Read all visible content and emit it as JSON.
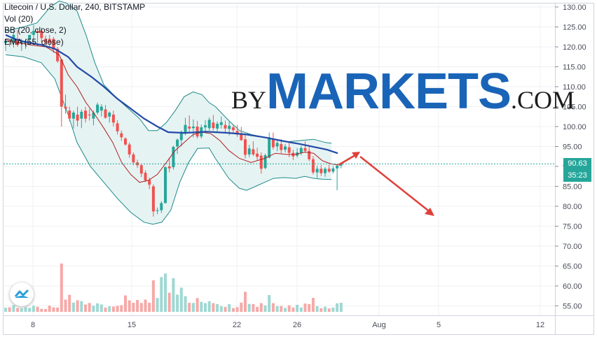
{
  "legend": {
    "title": "Litecoin / U.S. Dollar, 240, BITSTAMP",
    "vol": "Vol (20)",
    "bb": "BB (20, close, 2)",
    "ema": "EMA (55, close)"
  },
  "brand": {
    "by": "BY",
    "markets": "MARKETS",
    "com": ".COM"
  },
  "price_tag": {
    "value": "90.63",
    "countdown": "35:23",
    "color": "#26a69a"
  },
  "colors": {
    "up": "#26a69a",
    "down": "#ef5350",
    "ema": "#2349a8",
    "basis": "#b02020",
    "band": "#1e8a8a",
    "band_fill": "#e3f2f2",
    "arrow": "#e0403a",
    "hline": "#26a69a"
  },
  "icon": "tradingview-logo-icon",
  "chart_data": {
    "type": "candlestick",
    "title": "Litecoin / U.S. Dollar, 240, BITSTAMP",
    "yaxis": {
      "ticks": [
        "130.00",
        "125.00",
        "120.00",
        "115.00",
        "110.00",
        "105.00",
        "100.00",
        "95.00",
        "90.00",
        "85.00",
        "80.00",
        "75.00",
        "70.00",
        "65.00",
        "60.00",
        "55.00"
      ],
      "range": [
        53,
        131
      ]
    },
    "xaxis": {
      "ticks": [
        "8",
        "15",
        "22",
        "26",
        "Aug",
        "5",
        "12"
      ]
    },
    "current_price": 90.63,
    "ema55": [
      [
        0,
        123
      ],
      [
        10,
        122
      ],
      [
        22,
        121.2
      ],
      [
        40,
        120.5
      ],
      [
        55,
        119.5
      ],
      [
        70,
        117.5
      ],
      [
        80,
        115
      ],
      [
        96,
        112.5
      ],
      [
        110,
        110
      ],
      [
        125,
        107
      ],
      [
        140,
        104.5
      ],
      [
        155,
        102
      ],
      [
        170,
        100
      ],
      [
        182,
        98.6
      ],
      [
        200,
        98.4
      ],
      [
        225,
        98.7
      ],
      [
        250,
        98.4
      ],
      [
        270,
        98
      ],
      [
        290,
        97.3
      ],
      [
        310,
        96.4
      ],
      [
        330,
        95.6
      ],
      [
        345,
        94.9
      ],
      [
        360,
        94.2
      ],
      [
        372,
        93.3
      ]
    ],
    "bb_basis": [
      [
        0,
        121.8
      ],
      [
        15,
        121
      ],
      [
        30,
        120.4
      ],
      [
        45,
        120
      ],
      [
        60,
        118
      ],
      [
        70,
        113
      ],
      [
        80,
        110
      ],
      [
        90,
        106
      ],
      [
        100,
        103
      ],
      [
        110,
        99.6
      ],
      [
        120,
        96
      ],
      [
        130,
        91
      ],
      [
        140,
        88
      ],
      [
        150,
        86
      ],
      [
        160,
        86.5
      ],
      [
        170,
        88
      ],
      [
        180,
        91
      ],
      [
        190,
        94
      ],
      [
        200,
        96
      ],
      [
        210,
        98
      ],
      [
        220,
        98.6
      ],
      [
        230,
        98.2
      ],
      [
        240,
        96.5
      ],
      [
        250,
        94
      ],
      [
        262,
        92
      ],
      [
        275,
        91
      ],
      [
        290,
        92
      ],
      [
        302,
        93.3
      ],
      [
        315,
        93
      ],
      [
        325,
        93
      ],
      [
        335,
        93.6
      ],
      [
        345,
        93.3
      ],
      [
        355,
        91.4
      ],
      [
        365,
        90.6
      ],
      [
        372,
        90.4
      ]
    ],
    "bb_upper": [
      [
        0,
        124
      ],
      [
        20,
        125
      ],
      [
        35,
        126
      ],
      [
        50,
        130
      ],
      [
        60,
        131.5
      ],
      [
        68,
        131
      ],
      [
        80,
        129
      ],
      [
        90,
        123
      ],
      [
        100,
        116
      ],
      [
        110,
        110.5
      ],
      [
        125,
        107
      ],
      [
        140,
        104
      ],
      [
        150,
        102
      ],
      [
        160,
        99
      ],
      [
        170,
        99
      ],
      [
        180,
        101
      ],
      [
        190,
        104
      ],
      [
        200,
        107.5
      ],
      [
        210,
        108.7
      ],
      [
        220,
        108
      ],
      [
        228,
        106
      ],
      [
        235,
        105
      ],
      [
        250,
        101.5
      ],
      [
        262,
        99
      ],
      [
        275,
        98
      ],
      [
        290,
        97.3
      ],
      [
        300,
        96.8
      ],
      [
        315,
        96.2
      ],
      [
        330,
        96.5
      ],
      [
        345,
        96.8
      ],
      [
        358,
        96
      ],
      [
        365,
        95.8
      ]
    ],
    "bb_lower": [
      [
        0,
        118
      ],
      [
        20,
        117.5
      ],
      [
        40,
        116
      ],
      [
        55,
        112
      ],
      [
        70,
        103
      ],
      [
        80,
        96
      ],
      [
        95,
        90
      ],
      [
        110,
        86
      ],
      [
        125,
        82
      ],
      [
        140,
        78.5
      ],
      [
        155,
        76
      ],
      [
        165,
        75.5
      ],
      [
        175,
        76
      ],
      [
        185,
        79
      ],
      [
        195,
        86
      ],
      [
        205,
        91
      ],
      [
        215,
        94.5
      ],
      [
        228,
        94.6
      ],
      [
        235,
        92
      ],
      [
        250,
        87
      ],
      [
        262,
        84.5
      ],
      [
        270,
        84
      ],
      [
        280,
        85
      ],
      [
        290,
        86
      ],
      [
        300,
        87
      ],
      [
        312,
        87.2
      ],
      [
        325,
        87
      ],
      [
        335,
        87.5
      ],
      [
        345,
        87
      ],
      [
        355,
        86.8
      ],
      [
        365,
        86.7
      ]
    ],
    "candles": [
      [
        121,
        122,
        119,
        121.5
      ],
      [
        121.5,
        122,
        120,
        121.2
      ],
      [
        121,
        124,
        119.8,
        123
      ],
      [
        122,
        124.2,
        120,
        120.5
      ],
      [
        120.8,
        122,
        119,
        121.2
      ],
      [
        121,
        122,
        119.5,
        121.5
      ],
      [
        121.8,
        123,
        120.5,
        123
      ],
      [
        123,
        125.5,
        121,
        124
      ],
      [
        124,
        124.5,
        121,
        123.5
      ],
      [
        124,
        124.8,
        121.2,
        122.2
      ],
      [
        122,
        122.8,
        120.5,
        121
      ],
      [
        122,
        123,
        120,
        121
      ],
      [
        122,
        122.5,
        118.5,
        119.3
      ],
      [
        119.5,
        120,
        116,
        116.4
      ],
      [
        116.8,
        117,
        100,
        105
      ],
      [
        105,
        108,
        103.2,
        104.5
      ],
      [
        104,
        105,
        101.3,
        102
      ],
      [
        102,
        104,
        99.5,
        103.5
      ],
      [
        103,
        105,
        100,
        101.5
      ],
      [
        102,
        104.3,
        99.6,
        103.7
      ],
      [
        104,
        105,
        101,
        102
      ],
      [
        103,
        104.5,
        101.5,
        102.8
      ],
      [
        102,
        104,
        100.3,
        103.5
      ],
      [
        103.5,
        106,
        103,
        105.5
      ],
      [
        104,
        105.6,
        102.5,
        105
      ],
      [
        104.3,
        105.4,
        102,
        102.2
      ],
      [
        102.5,
        103.8,
        101,
        103.5
      ],
      [
        103,
        104,
        100,
        101
      ],
      [
        100.8,
        101.6,
        98,
        98.8
      ],
      [
        98.3,
        99,
        96.4,
        97.3
      ],
      [
        97,
        97.3,
        95.2,
        95.5
      ],
      [
        95.5,
        96,
        92.2,
        93
      ],
      [
        93,
        93.5,
        90.3,
        91
      ],
      [
        91,
        91.7,
        89.6,
        90.3
      ],
      [
        90.3,
        90.5,
        87.3,
        88.2
      ],
      [
        88.4,
        89,
        86.1,
        86.5
      ],
      [
        86.6,
        87.2,
        84.3,
        85.4
      ],
      [
        85,
        85.5,
        77.4,
        78.7
      ],
      [
        78.8,
        79.7,
        78,
        79
      ],
      [
        79,
        81.3,
        78.3,
        80.8
      ],
      [
        80.8,
        90,
        80.7,
        89.8
      ],
      [
        90,
        92.2,
        88.5,
        89.5
      ],
      [
        89.8,
        95.2,
        89.2,
        94.9
      ],
      [
        95,
        97,
        93.1,
        96.7
      ],
      [
        96.6,
        99,
        95,
        98.7
      ],
      [
        98.6,
        102.2,
        97.8,
        100.4
      ],
      [
        100,
        102.8,
        98.5,
        99.5
      ],
      [
        99.6,
        101.8,
        97.3,
        100
      ],
      [
        100,
        101.4,
        97,
        97.5
      ],
      [
        97.5,
        100.5,
        97,
        99.8
      ],
      [
        99.8,
        101.6,
        98.4,
        100.3
      ],
      [
        99.6,
        102.3,
        99,
        101.7
      ],
      [
        101,
        102.9,
        99,
        99.6
      ],
      [
        99.5,
        101.3,
        98.5,
        100.7
      ],
      [
        100.4,
        102.5,
        99.5,
        101.1
      ],
      [
        100.4,
        101.5,
        98.6,
        99.5
      ],
      [
        99.4,
        101.2,
        97.8,
        100.2
      ],
      [
        99.8,
        100.4,
        98.2,
        99.1
      ],
      [
        98.9,
        100.4,
        97.4,
        98
      ],
      [
        98.3,
        99.9,
        96.4,
        96.6
      ],
      [
        96.8,
        97.8,
        92,
        92.9
      ],
      [
        93,
        95.4,
        92.3,
        94.5
      ],
      [
        94.3,
        96.3,
        92.6,
        93
      ],
      [
        93.2,
        94.7,
        91.5,
        92.4
      ],
      [
        92.7,
        93.5,
        88.2,
        89.4
      ],
      [
        89.6,
        93.2,
        89.3,
        92.8
      ],
      [
        92.2,
        98.5,
        92,
        97.3
      ],
      [
        97,
        98.5,
        94.2,
        94.8
      ],
      [
        95,
        96.4,
        93.8,
        95.9
      ],
      [
        95.6,
        96.8,
        93.3,
        94.1
      ],
      [
        94.2,
        95.6,
        93.5,
        95
      ],
      [
        94.8,
        95.9,
        92.3,
        93.4
      ],
      [
        93.4,
        94.2,
        91.6,
        92.5
      ],
      [
        92.7,
        94.6,
        92.2,
        93.5
      ],
      [
        93.4,
        95.2,
        92.8,
        94.6
      ],
      [
        94.6,
        96.3,
        93.4,
        93.9
      ],
      [
        93.9,
        95,
        91.3,
        91.8
      ],
      [
        91.8,
        92.6,
        88,
        88.5
      ],
      [
        88.5,
        90.2,
        87.1,
        89.4
      ],
      [
        89.4,
        90.3,
        87.6,
        88.3
      ],
      [
        88.3,
        89.8,
        87.4,
        89.4
      ],
      [
        89.4,
        90.4,
        88.4,
        88.7
      ],
      [
        88.7,
        90.2,
        88.2,
        89.5
      ],
      [
        89.5,
        90.6,
        84,
        90.2
      ],
      [
        90.2,
        91,
        89.5,
        90.6
      ]
    ],
    "volumes": [
      2.2,
      2.4,
      3.5,
      2.0,
      1.9,
      2.4,
      2.1,
      3.2,
      2.7,
      1.6,
      1.5,
      3.3,
      2.4,
      2.3,
      25.6,
      6.5,
      9.0,
      4.9,
      6.1,
      5.7,
      3.9,
      4.7,
      3.3,
      4.5,
      3.9,
      2.3,
      2.9,
      2.8,
      3.2,
      3.5,
      8.7,
      6.1,
      4.8,
      6.3,
      4.7,
      6.5,
      4.8,
      16.7,
      7.3,
      18.4,
      20.3,
      10.1,
      17.8,
      9.1,
      12.8,
      8.3,
      4.8,
      4.7,
      7.3,
      5.3,
      4.6,
      5.6,
      4.6,
      4.1,
      3.0,
      2.6,
      4.1,
      2.0,
      2.5,
      4.9,
      10.6,
      4.2,
      4.1,
      2.6,
      4.6,
      3.4,
      8.9,
      4.6,
      3.0,
      3.1,
      2.1,
      3.5,
      2.3,
      3.7,
      2.3,
      4.4,
      4.1,
      7.4,
      3.0,
      1.9,
      2.7,
      1.8,
      2.3,
      4.5,
      4.8
    ],
    "volume_axis_max": 40
  }
}
